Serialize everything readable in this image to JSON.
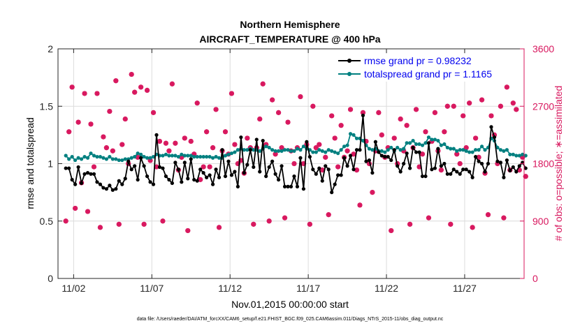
{
  "chart_data": {
    "type": "line",
    "title": "Northern Hemisphere",
    "subtitle": "AIRCRAFT_TEMPERATURE @ 400 hPa",
    "xlabel": "Nov.01,2015 00:00:00 start",
    "ylabel_left": "rmse and totalspread",
    "ylabel_right": "# of obs: o=possible; ∗=assimilated",
    "xlim": [
      0.5,
      30.3
    ],
    "ylim_left": [
      0,
      2
    ],
    "ylim_right": [
      0,
      3600
    ],
    "x_ticks": [
      1.5,
      6.5,
      11.5,
      16.5,
      21.5,
      26.5
    ],
    "x_tick_labels": [
      "11/02",
      "11/07",
      "11/12",
      "11/17",
      "11/22",
      "11/27"
    ],
    "y_ticks_left": [
      0,
      0.5,
      1,
      1.5,
      2
    ],
    "y_tick_labels_left": [
      "0",
      "0.5",
      "1",
      "1.5",
      "2"
    ],
    "y_ticks_right": [
      0,
      900,
      1800,
      2700,
      3600
    ],
    "y_tick_labels_right": [
      "0",
      "900",
      "1800",
      "2700",
      "3600"
    ],
    "legend_position": "top-right",
    "footer": "data file: /Users/raeder/DAI/ATM_forcXX/CAM6_setup/f.e21.FHIST_BGC.f09_025.CAM6assim.011/Diags_NTrS_2015-11/obs_diag_output.nc",
    "colors": {
      "rmse": "#000000",
      "totalspread": "#008080",
      "obs": "#d8175e",
      "legend_text": "#0000ee",
      "grid": "#dcdcdc"
    },
    "series": [
      {
        "name": "rmse grand pr = 0.98232",
        "axis": "left",
        "marker": "dot",
        "values": [
          0.96,
          0.96,
          0.86,
          0.82,
          0.97,
          0.83,
          0.91,
          0.92,
          0.91,
          0.91,
          0.84,
          0.82,
          0.79,
          0.78,
          0.81,
          0.77,
          0.78,
          0.85,
          0.82,
          0.87,
          1.02,
          0.95,
          0.98,
          0.86,
          1.05,
          0.98,
          0.89,
          0.84,
          0.82,
          1.25,
          0.97,
          0.96,
          0.89,
          0.86,
          0.83,
          1.01,
          0.95,
          0.84,
          1.01,
          0.87,
          1.04,
          0.86,
          0.85,
          0.95,
          0.92,
          0.88,
          0.9,
          0.82,
          0.95,
          0.88,
          1.12,
          0.89,
          1.02,
          0.9,
          0.93,
          0.8,
          1.23,
          0.92,
          0.99,
          1.12,
          0.97,
          1.21,
          0.93,
          1.2,
          0.89,
          0.97,
          1.02,
          0.91,
          0.86,
          0.98,
          0.8,
          0.8,
          0.8,
          0.89,
          0.8,
          1.05,
          0.78,
          1.19,
          1.06,
          0.95,
          0.91,
          0.96,
          0.85,
          0.98,
          0.95,
          0.75,
          0.82,
          0.9,
          0.9,
          1.05,
          0.98,
          1.07,
          0.95,
          1.12,
          1.12,
          1.42,
          1.02,
          1.03,
          0.92,
          1.19,
          1.1,
          1.07,
          1.06,
          1.06,
          1.03,
          1.12,
          0.98,
          0.93,
          1.0,
          1.09,
          0.96,
          1.14,
          1.1,
          1.1,
          0.89,
          0.89,
          1.18,
          0.95,
          0.96,
          1.13,
          0.98,
          1.0,
          0.91,
          0.91,
          0.95,
          0.93,
          0.91,
          0.95,
          0.95,
          0.93,
          0.88,
          1.06,
          1.02,
          1.0,
          0.93,
          1.0,
          1.32,
          1.23,
          1.02,
          1.01,
          0.88,
          1.03,
          0.94,
          0.97,
          0.93,
          0.98,
          1.01,
          0.96
        ]
      },
      {
        "name": "totalspread grand pr = 1.1165",
        "axis": "left",
        "marker": "dot",
        "values": [
          1.07,
          1.04,
          1.06,
          1.03,
          1.05,
          1.04,
          1.06,
          1.05,
          1.09,
          1.07,
          1.06,
          1.06,
          1.05,
          1.04,
          1.06,
          1.04,
          1.04,
          1.03,
          1.03,
          1.04,
          1.04,
          1.05,
          1.06,
          1.09,
          1.08,
          1.06,
          1.05,
          1.05,
          1.06,
          1.08,
          1.07,
          1.07,
          1.08,
          1.07,
          1.07,
          1.07,
          1.06,
          1.08,
          1.07,
          1.07,
          1.07,
          1.06,
          1.06,
          1.06,
          1.06,
          1.06,
          1.06,
          1.05,
          1.06,
          1.05,
          1.05,
          1.07,
          1.08,
          1.09,
          1.1,
          1.12,
          1.13,
          1.12,
          1.12,
          1.13,
          1.12,
          1.12,
          1.11,
          1.13,
          1.15,
          1.14,
          1.12,
          1.11,
          1.11,
          1.11,
          1.12,
          1.12,
          1.11,
          1.11,
          1.13,
          1.12,
          1.15,
          1.13,
          1.12,
          1.1,
          1.1,
          1.12,
          1.11,
          1.1,
          1.12,
          1.11,
          1.1,
          1.09,
          1.12,
          1.15,
          1.16,
          1.26,
          1.25,
          1.22,
          1.22,
          1.2,
          1.16,
          1.13,
          1.12,
          1.13,
          1.11,
          1.11,
          1.1,
          1.12,
          1.14,
          1.11,
          1.14,
          1.12,
          1.13,
          1.18,
          1.18,
          1.2,
          1.17,
          1.17,
          1.16,
          1.18,
          1.23,
          1.21,
          1.21,
          1.2,
          1.16,
          1.17,
          1.14,
          1.13,
          1.13,
          1.11,
          1.12,
          1.12,
          1.11,
          1.1,
          1.1,
          1.12,
          1.12,
          1.15,
          1.12,
          1.14,
          1.22,
          1.2,
          1.14,
          1.12,
          1.11,
          1.12,
          1.08,
          1.08,
          1.07,
          1.07,
          1.08,
          1.07
        ]
      },
      {
        "name": "# of obs assimilated",
        "axis": "right",
        "marker": "asterisk",
        "values": [
          900,
          2300,
          3000,
          1100,
          2450,
          1500,
          2900,
          1050,
          2420,
          1750,
          2900,
          800,
          2220,
          2050,
          2620,
          2000,
          3100,
          850,
          2100,
          2500,
          1800,
          3200,
          2920,
          1900,
          3000,
          850,
          2950,
          1850,
          2600,
          1750,
          2150,
          900,
          2120,
          2000,
          3050,
          2120,
          1700,
          1900,
          2200,
          750,
          2150,
          1950,
          2750,
          1550,
          1750,
          2300,
          1750,
          2050,
          2650,
          800,
          2000,
          2300,
          1950,
          2900,
          2100,
          1800,
          1850,
          1650,
          2200,
          2050,
          850,
          2050,
          2500,
          3050,
          2100,
          900,
          2800,
          1950,
          2600,
          2050,
          950,
          2450,
          2000,
          1800,
          2050,
          2850,
          1800,
          2100,
          850,
          2700,
          2050,
          2100,
          1700,
          1900,
          1000,
          2550,
          2200,
          1750,
          2400,
          1900,
          2000,
          2650,
          1950,
          1700,
          1150,
          2600,
          2150,
          1800,
          1350,
          2000,
          2600,
          2250,
          1900,
          2050,
          750,
          2200,
          1800,
          2500,
          2000,
          2400,
          850,
          2050,
          2650,
          1750,
          1950,
          2300,
          950,
          2150,
          2600,
          2000,
          1700,
          2300,
          2700,
          850,
          2700,
          1950,
          1800,
          2550,
          2050,
          2750,
          800,
          2200,
          1900,
          2800,
          1650,
          1000,
          2550,
          2250,
          1800,
          2700,
          950,
          3000,
          1700,
          2750,
          2650,
          1700,
          1900,
          1600
        ]
      },
      {
        "name": "# of obs possible",
        "axis": "right",
        "marker": "circle",
        "values": [
          900,
          2300,
          3000,
          1100,
          2450,
          1500,
          2900,
          1050,
          2420,
          1750,
          2900,
          800,
          2220,
          2050,
          2620,
          2000,
          3100,
          850,
          2100,
          2500,
          1800,
          3200,
          2920,
          1900,
          3000,
          850,
          2950,
          1850,
          2600,
          1750,
          2150,
          900,
          2120,
          2000,
          3050,
          2120,
          1700,
          1900,
          2200,
          750,
          2150,
          1950,
          2750,
          1550,
          1750,
          2300,
          1750,
          2050,
          2650,
          800,
          2000,
          2300,
          1950,
          2900,
          2100,
          1800,
          1850,
          1650,
          2200,
          2050,
          850,
          2050,
          2500,
          3050,
          2100,
          900,
          2800,
          1950,
          2600,
          2050,
          950,
          2450,
          2000,
          1800,
          2050,
          2850,
          1800,
          2100,
          850,
          2700,
          2050,
          2100,
          1700,
          1900,
          1000,
          2550,
          2200,
          1750,
          2400,
          1900,
          2000,
          2650,
          1950,
          1700,
          1150,
          2600,
          2150,
          1800,
          1350,
          2000,
          2600,
          2250,
          1900,
          2050,
          750,
          2200,
          1800,
          2500,
          2000,
          2400,
          850,
          2050,
          2650,
          1750,
          1950,
          2300,
          950,
          2150,
          2600,
          2000,
          1700,
          2300,
          2700,
          850,
          2700,
          1950,
          1800,
          2550,
          2050,
          2750,
          800,
          2200,
          1900,
          2800,
          1650,
          1000,
          2550,
          2250,
          1800,
          2700,
          950,
          3000,
          1700,
          2750,
          2650,
          1700,
          1900,
          1600
        ]
      }
    ]
  }
}
